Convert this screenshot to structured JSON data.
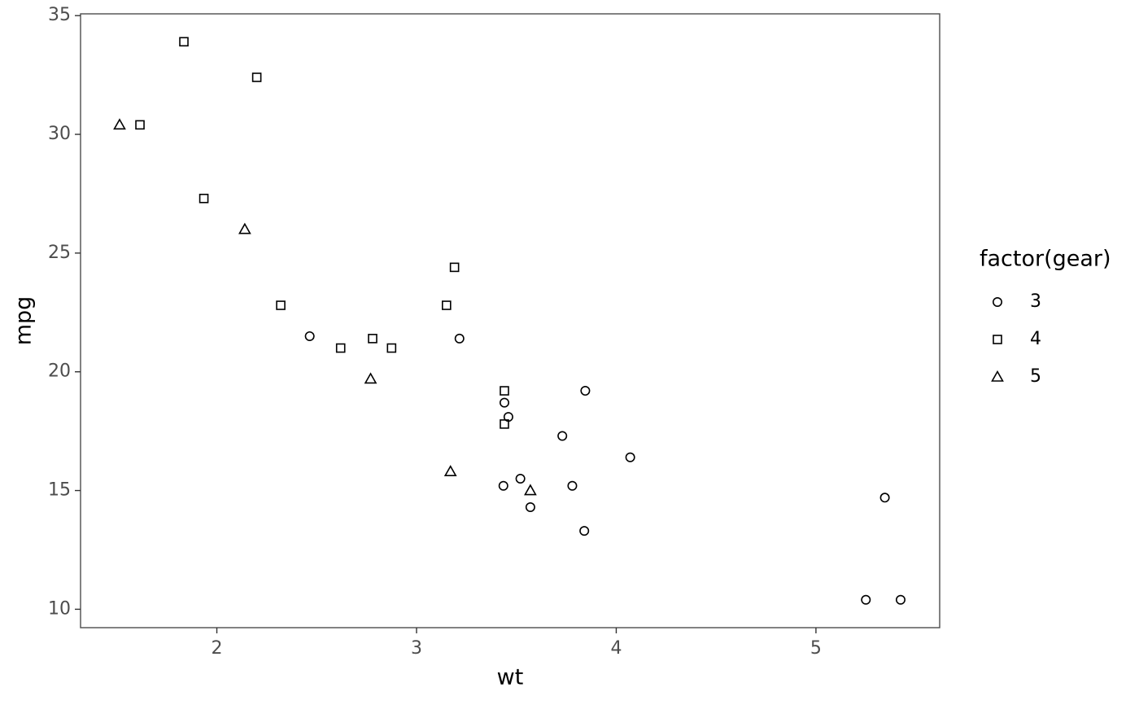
{
  "chart_data": {
    "type": "scatter",
    "x_label": "wt",
    "y_label": "mpg",
    "legend_title": "factor(gear)",
    "legend_position": "right",
    "grid": false,
    "xlim": [
      1.3175,
      5.6196
    ],
    "xticks": [
      2,
      3,
      4,
      5
    ],
    "ylim": [
      9.225,
      35.075
    ],
    "yticks": [
      10,
      15,
      20,
      25,
      30,
      35
    ],
    "series": [
      {
        "name": "3",
        "shape": "circle",
        "color": "#000000",
        "x": [
          3.215,
          3.44,
          3.46,
          3.57,
          4.07,
          3.73,
          3.78,
          5.25,
          5.424,
          5.345,
          2.465,
          3.52,
          3.435,
          3.84,
          3.845
        ],
        "values": [
          21.4,
          18.7,
          18.1,
          14.3,
          16.4,
          17.3,
          15.2,
          10.4,
          10.4,
          14.7,
          21.5,
          15.5,
          15.2,
          13.3,
          19.2
        ]
      },
      {
        "name": "4",
        "shape": "square",
        "color": "#000000",
        "x": [
          2.62,
          2.875,
          2.32,
          3.19,
          3.15,
          3.44,
          3.44,
          2.2,
          1.615,
          1.835,
          1.935,
          2.78
        ],
        "values": [
          21,
          21,
          22.8,
          24.4,
          22.8,
          19.2,
          17.8,
          32.4,
          30.4,
          33.9,
          27.3,
          21.4
        ]
      },
      {
        "name": "5",
        "shape": "triangle",
        "color": "#000000",
        "x": [
          2.14,
          1.513,
          3.17,
          2.77,
          3.57
        ],
        "values": [
          26,
          30.4,
          15.8,
          19.7,
          15
        ]
      }
    ]
  }
}
